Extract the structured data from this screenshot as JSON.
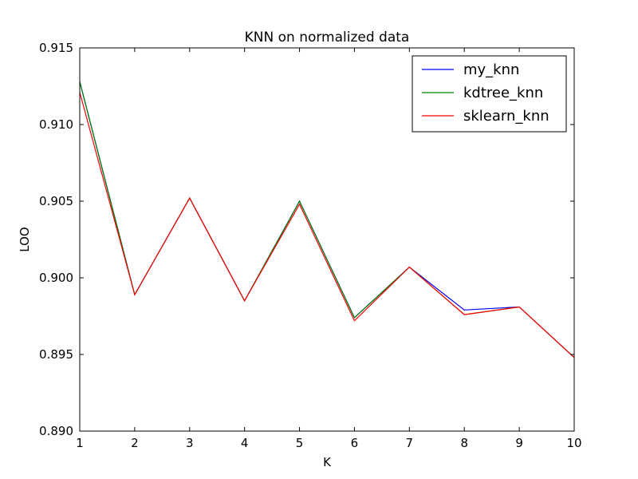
{
  "chart_data": {
    "type": "line",
    "title": "KNN on normalized data",
    "xlabel": "K",
    "ylabel": "LOO",
    "xlim": [
      1,
      10
    ],
    "ylim": [
      0.89,
      0.915
    ],
    "xticks": [
      1,
      2,
      3,
      4,
      5,
      6,
      7,
      8,
      9,
      10
    ],
    "xtick_labels": [
      "1",
      "2",
      "3",
      "4",
      "5",
      "6",
      "7",
      "8",
      "9",
      "10"
    ],
    "yticks": [
      0.89,
      0.895,
      0.9,
      0.905,
      0.91,
      0.915
    ],
    "ytick_labels": [
      "0.890",
      "0.895",
      "0.900",
      "0.905",
      "0.910",
      "0.915"
    ],
    "grid": false,
    "legend_position": "top-right",
    "x": [
      1,
      2,
      3,
      4,
      5,
      6,
      7,
      8,
      9,
      10
    ],
    "series": [
      {
        "name": "my_knn",
        "color": "#0000ff",
        "values": [
          0.9128,
          0.8989,
          0.9052,
          0.8985,
          0.905,
          0.8974,
          0.9007,
          0.8979,
          0.8981,
          0.8948
        ]
      },
      {
        "name": "kdtree_knn",
        "color": "#008000",
        "values": [
          0.9128,
          0.8989,
          0.9052,
          0.8985,
          0.905,
          0.8974,
          0.9007,
          0.8976,
          0.8981,
          0.8948
        ]
      },
      {
        "name": "sklearn_knn",
        "color": "#ff0000",
        "values": [
          0.9121,
          0.8989,
          0.9052,
          0.8985,
          0.9048,
          0.8972,
          0.9007,
          0.8976,
          0.8981,
          0.8948
        ]
      }
    ]
  }
}
